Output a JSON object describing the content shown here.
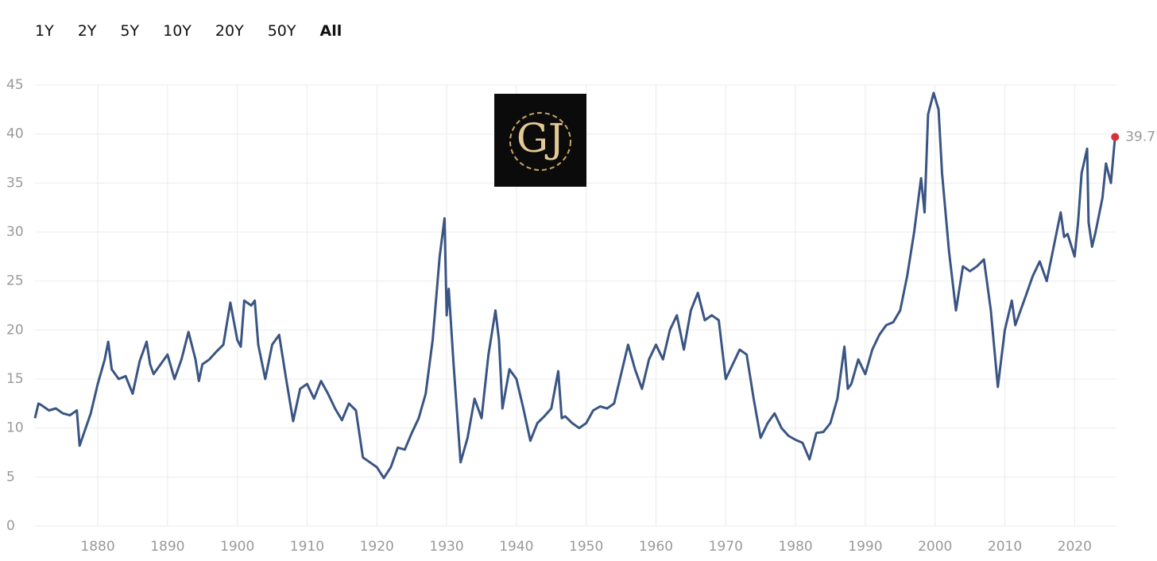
{
  "ranges": [
    "1Y",
    "2Y",
    "5Y",
    "10Y",
    "20Y",
    "50Y",
    "All"
  ],
  "logo": "GJ",
  "chart_data": {
    "type": "line",
    "color": "#3a5583",
    "marker_color": "#d3343a",
    "x": [
      1871,
      1871.5,
      1872,
      1873,
      1874,
      1875,
      1876,
      1877,
      1877.4,
      1879,
      1880,
      1881,
      1881.5,
      1882,
      1883,
      1884,
      1885,
      1886,
      1887,
      1887.5,
      1888,
      1889,
      1890,
      1891,
      1892,
      1893,
      1894,
      1894.5,
      1895,
      1896,
      1897,
      1898,
      1899,
      1900,
      1900.5,
      1901,
      1902,
      1902.5,
      1903,
      1904,
      1905,
      1906,
      1907,
      1908,
      1909,
      1910,
      1911,
      1912,
      1913,
      1914,
      1915,
      1916,
      1917,
      1918,
      1919,
      1920,
      1921,
      1922,
      1923,
      1924,
      1925,
      1926,
      1927,
      1928,
      1929,
      1929.7,
      1930,
      1930.3,
      1931,
      1932,
      1933,
      1934,
      1935,
      1936,
      1937,
      1937.5,
      1938,
      1939,
      1940,
      1941,
      1942,
      1943,
      1944,
      1945,
      1946,
      1946.5,
      1947,
      1948,
      1949,
      1950,
      1951,
      1952,
      1953,
      1954,
      1955,
      1956,
      1957,
      1958,
      1959,
      1960,
      1961,
      1962,
      1963,
      1964,
      1965,
      1966,
      1967,
      1968,
      1969,
      1970,
      1971,
      1972,
      1973,
      1974,
      1975,
      1976,
      1977,
      1978,
      1979,
      1980,
      1981,
      1982,
      1983,
      1984,
      1985,
      1986,
      1987,
      1987.5,
      1988,
      1989,
      1990,
      1991,
      1992,
      1993,
      1994,
      1995,
      1996,
      1997,
      1998,
      1998.5,
      1999,
      1999.8,
      2000.5,
      2001,
      2002,
      2003,
      2004,
      2005,
      2006,
      2007,
      2008,
      2009,
      2010,
      2011,
      2011.5,
      2012,
      2013,
      2014,
      2015,
      2016,
      2017,
      2018,
      2018.5,
      2019,
      2020,
      2020.5,
      2021,
      2021.8,
      2022,
      2022.5,
      2023,
      2024,
      2024.5,
      2025.2,
      2025.8
    ],
    "values": [
      11,
      12.5,
      12.3,
      11.8,
      12,
      11.5,
      11.3,
      11.8,
      8.2,
      11.5,
      14.5,
      17,
      18.8,
      16,
      15,
      15.3,
      13.5,
      16.8,
      18.8,
      16.5,
      15.5,
      16.5,
      17.5,
      15,
      17,
      19.8,
      17,
      14.8,
      16.5,
      17,
      17.8,
      18.5,
      22.8,
      19,
      18.3,
      23,
      22.5,
      23,
      18.5,
      15,
      18.5,
      19.5,
      15,
      10.7,
      14,
      14.5,
      13,
      14.8,
      13.5,
      12,
      10.8,
      12.5,
      11.8,
      7,
      6.5,
      6,
      4.9,
      6,
      8,
      7.8,
      9.5,
      11,
      13.5,
      19,
      27.5,
      31.4,
      21.5,
      24.2,
      16.5,
      6.5,
      9,
      13,
      11,
      17.5,
      22,
      19,
      12,
      16,
      15,
      12,
      8.7,
      10.5,
      11.2,
      12,
      15.8,
      11,
      11.2,
      10.5,
      10,
      10.5,
      11.8,
      12.2,
      12,
      12.5,
      15.5,
      18.5,
      16,
      14,
      17,
      18.5,
      17,
      20,
      21.5,
      18,
      22,
      23.8,
      21,
      21.5,
      21,
      15,
      16.5,
      18,
      17.5,
      13,
      9,
      10.5,
      11.5,
      10,
      9.2,
      8.8,
      8.5,
      6.8,
      9.5,
      9.6,
      10.5,
      13,
      18.3,
      14,
      14.5,
      17,
      15.5,
      18,
      19.5,
      20.5,
      20.8,
      22,
      25.5,
      30,
      35.5,
      32,
      42,
      44.2,
      42.5,
      36,
      28,
      22,
      26.5,
      26,
      26.5,
      27.2,
      22,
      14.2,
      20,
      23,
      20.5,
      21.5,
      23.5,
      25.5,
      27,
      25,
      28.5,
      32,
      29.5,
      29.8,
      27.5,
      31,
      36,
      38.5,
      31,
      28.5,
      30,
      33.5,
      37,
      35,
      39.7
    ],
    "xlim": [
      1871,
      2026
    ],
    "ylim": [
      0,
      45
    ],
    "xticks": [
      1880,
      1890,
      1900,
      1910,
      1920,
      1930,
      1940,
      1950,
      1960,
      1970,
      1980,
      1990,
      2000,
      2010,
      2020
    ],
    "yticks": [
      0,
      5,
      10,
      15,
      20,
      25,
      30,
      35,
      40,
      45
    ],
    "grid": true
  }
}
